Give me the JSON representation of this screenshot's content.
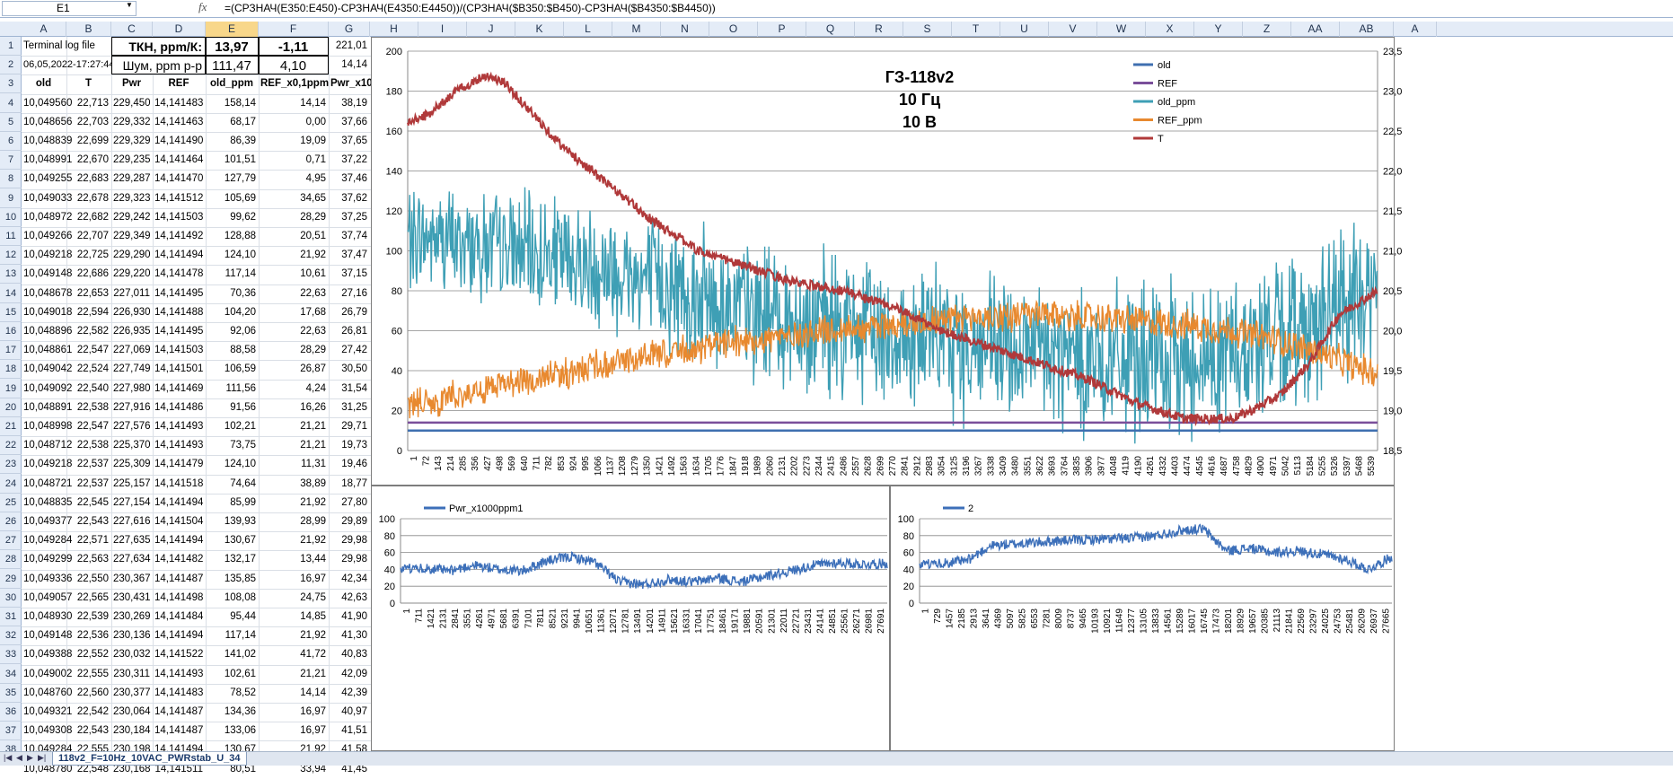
{
  "formula_bar": {
    "name_box": "E1",
    "fx": "fx",
    "formula": "=(СРЗНАЧ(E350:E450)-СРЗНАЧ(E4350:E4450))/(СРЗНАЧ($B350:$B450)-СРЗНАЧ($B4350:$B4450))"
  },
  "columns": [
    "A",
    "B",
    "C",
    "D",
    "E",
    "F",
    "G",
    "H",
    "I",
    "J",
    "K",
    "L",
    "M",
    "N",
    "O",
    "P",
    "Q",
    "R",
    "S",
    "T",
    "U",
    "V",
    "W",
    "X",
    "Y",
    "Z",
    "AA",
    "AB",
    "A"
  ],
  "selected_column": "E",
  "rows": [
    "1",
    "2",
    "3",
    "4",
    "5",
    "6",
    "7",
    "8",
    "9",
    "10",
    "11",
    "12",
    "13",
    "14",
    "15",
    "16",
    "17",
    "18",
    "19",
    "20",
    "21",
    "22",
    "23",
    "24",
    "25",
    "26",
    "27",
    "28",
    "29",
    "30",
    "31",
    "32",
    "33",
    "34",
    "35",
    "36",
    "37",
    "38"
  ],
  "row1": {
    "a": "Terminal log file",
    "c": "ТКН, ppm/К:",
    "e": "13,97",
    "f": "-1,11",
    "g": "221,01"
  },
  "row2": {
    "a": "06,05,2022-17:27:44",
    "c": "Шум, ppm p-p",
    "e": "111,47",
    "f": "4,10",
    "g": "14,14"
  },
  "headers": [
    "old",
    "T",
    "Pwr",
    "REF",
    "old_ppm",
    "REF_x0,1ppm",
    "Pwr_x10"
  ],
  "table": [
    [
      "10,049560",
      "22,713",
      "229,450",
      "14,141483",
      "158,14",
      "14,14",
      "38,19"
    ],
    [
      "10,048656",
      "22,703",
      "229,332",
      "14,141463",
      "68,17",
      "0,00",
      "37,66"
    ],
    [
      "10,048839",
      "22,699",
      "229,329",
      "14,141490",
      "86,39",
      "19,09",
      "37,65"
    ],
    [
      "10,048991",
      "22,670",
      "229,235",
      "14,141464",
      "101,51",
      "0,71",
      "37,22"
    ],
    [
      "10,049255",
      "22,683",
      "229,287",
      "14,141470",
      "127,79",
      "4,95",
      "37,46"
    ],
    [
      "10,049033",
      "22,678",
      "229,323",
      "14,141512",
      "105,69",
      "34,65",
      "37,62"
    ],
    [
      "10,048972",
      "22,682",
      "229,242",
      "14,141503",
      "99,62",
      "28,29",
      "37,25"
    ],
    [
      "10,049266",
      "22,707",
      "229,349",
      "14,141492",
      "128,88",
      "20,51",
      "37,74"
    ],
    [
      "10,049218",
      "22,725",
      "229,290",
      "14,141494",
      "124,10",
      "21,92",
      "37,47"
    ],
    [
      "10,049148",
      "22,686",
      "229,220",
      "14,141478",
      "117,14",
      "10,61",
      "37,15"
    ],
    [
      "10,048678",
      "22,653",
      "227,011",
      "14,141495",
      "70,36",
      "22,63",
      "27,16"
    ],
    [
      "10,049018",
      "22,594",
      "226,930",
      "14,141488",
      "104,20",
      "17,68",
      "26,79"
    ],
    [
      "10,048896",
      "22,582",
      "226,935",
      "14,141495",
      "92,06",
      "22,63",
      "26,81"
    ],
    [
      "10,048861",
      "22,547",
      "227,069",
      "14,141503",
      "88,58",
      "28,29",
      "27,42"
    ],
    [
      "10,049042",
      "22,524",
      "227,749",
      "14,141501",
      "106,59",
      "26,87",
      "30,50"
    ],
    [
      "10,049092",
      "22,540",
      "227,980",
      "14,141469",
      "111,56",
      "4,24",
      "31,54"
    ],
    [
      "10,048891",
      "22,538",
      "227,916",
      "14,141486",
      "91,56",
      "16,26",
      "31,25"
    ],
    [
      "10,048998",
      "22,547",
      "227,576",
      "14,141493",
      "102,21",
      "21,21",
      "29,71"
    ],
    [
      "10,048712",
      "22,538",
      "225,370",
      "14,141493",
      "73,75",
      "21,21",
      "19,73"
    ],
    [
      "10,049218",
      "22,537",
      "225,309",
      "14,141479",
      "124,10",
      "11,31",
      "19,46"
    ],
    [
      "10,048721",
      "22,537",
      "225,157",
      "14,141518",
      "74,64",
      "38,89",
      "18,77"
    ],
    [
      "10,048835",
      "22,545",
      "227,154",
      "14,141494",
      "85,99",
      "21,92",
      "27,80"
    ],
    [
      "10,049377",
      "22,543",
      "227,616",
      "14,141504",
      "139,93",
      "28,99",
      "29,89"
    ],
    [
      "10,049284",
      "22,571",
      "227,635",
      "14,141494",
      "130,67",
      "21,92",
      "29,98"
    ],
    [
      "10,049299",
      "22,563",
      "227,634",
      "14,141482",
      "132,17",
      "13,44",
      "29,98"
    ],
    [
      "10,049336",
      "22,550",
      "230,367",
      "14,141487",
      "135,85",
      "16,97",
      "42,34"
    ],
    [
      "10,049057",
      "22,565",
      "230,431",
      "14,141498",
      "108,08",
      "24,75",
      "42,63"
    ],
    [
      "10,048930",
      "22,539",
      "230,269",
      "14,141484",
      "95,44",
      "14,85",
      "41,90"
    ],
    [
      "10,049148",
      "22,536",
      "230,136",
      "14,141494",
      "117,14",
      "21,92",
      "41,30"
    ],
    [
      "10,049388",
      "22,552",
      "230,032",
      "14,141522",
      "141,02",
      "41,72",
      "40,83"
    ],
    [
      "10,049002",
      "22,555",
      "230,311",
      "14,141493",
      "102,61",
      "21,21",
      "42,09"
    ],
    [
      "10,048760",
      "22,560",
      "230,377",
      "14,141483",
      "78,52",
      "14,14",
      "42,39"
    ],
    [
      "10,049321",
      "22,542",
      "230,064",
      "14,141487",
      "134,36",
      "16,97",
      "40,97"
    ],
    [
      "10,049308",
      "22,543",
      "230,184",
      "14,141487",
      "133,06",
      "16,97",
      "41,51"
    ],
    [
      "10,049284",
      "22,555",
      "230,198",
      "14,141494",
      "130,67",
      "21,92",
      "41,58"
    ],
    [
      "10,048780",
      "22,548",
      "230,168",
      "14,141511",
      "80,51",
      "33,94",
      "41,45"
    ]
  ],
  "sheet_tab": "118v2_F=10Hz_10VAC_PWRstab_U_34",
  "colors": {
    "old": "#3f6fb0",
    "REF": "#7a4f9a",
    "old_ppm": "#3e9fb5",
    "REF_ppm": "#e8892f",
    "T": "#b0393a",
    "pwr": "#3c6fb9"
  },
  "chart_data": [
    {
      "type": "line",
      "annotation": [
        "ГЗ-118v2",
        "10 Гц",
        "10 В"
      ],
      "legend": [
        "old",
        "REF",
        "old_ppm",
        "REF_ppm",
        "T"
      ],
      "legend_position": "top-right",
      "ylim": [
        0,
        200
      ],
      "yticks": [
        "0",
        "20",
        "40",
        "60",
        "80",
        "100",
        "120",
        "140",
        "160",
        "180",
        "200"
      ],
      "y2lim": [
        18.5,
        23.5
      ],
      "y2ticks": [
        "18,5",
        "19,0",
        "19,5",
        "20,0",
        "20,5",
        "21,0",
        "21,5",
        "22,0",
        "22,5",
        "23,0",
        "23,5"
      ],
      "xticks": [
        "1",
        "72",
        "143",
        "214",
        "285",
        "356",
        "427",
        "498",
        "569",
        "640",
        "711",
        "782",
        "853",
        "924",
        "995",
        "1066",
        "1137",
        "1208",
        "1279",
        "1350",
        "1421",
        "1492",
        "1563",
        "1634",
        "1705",
        "1776",
        "1847",
        "1918",
        "1989",
        "2060",
        "2131",
        "2202",
        "2273",
        "2344",
        "2415",
        "2486",
        "2557",
        "2628",
        "2699",
        "2770",
        "2841",
        "2912",
        "2983",
        "3054",
        "3125",
        "3196",
        "3267",
        "3338",
        "3409",
        "3480",
        "3551",
        "3622",
        "3693",
        "3764",
        "3835",
        "3906",
        "3977",
        "4048",
        "4119",
        "4190",
        "4261",
        "4332",
        "4403",
        "4474",
        "4545",
        "4616",
        "4687",
        "4758",
        "4829",
        "4900",
        "4971",
        "5042",
        "5113",
        "5184",
        "5255",
        "5326",
        "5397",
        "5468",
        "5539"
      ],
      "series": [
        {
          "name": "old",
          "values": [
            10,
            10
          ]
        },
        {
          "name": "REF",
          "values": [
            14,
            14
          ]
        },
        {
          "name": "old_ppm",
          "x": [
            0,
            0.05,
            0.1,
            0.15,
            0.2,
            0.25,
            0.3,
            0.35,
            0.4,
            0.45,
            0.5,
            0.55,
            0.6,
            0.65,
            0.7,
            0.75,
            0.8,
            0.85,
            0.9,
            0.95,
            1.0
          ],
          "center": [
            107,
            105,
            100,
            97,
            92,
            85,
            78,
            70,
            65,
            61,
            58,
            54,
            50,
            47,
            45,
            43,
            45,
            50,
            58,
            68,
            80
          ],
          "spread": [
            30,
            32,
            34,
            36,
            38,
            40,
            40,
            42,
            42,
            44,
            44,
            44,
            45,
            45,
            45,
            46,
            46,
            46,
            46,
            46,
            45
          ]
        },
        {
          "name": "REF_ppm",
          "x": [
            0,
            0.05,
            0.1,
            0.15,
            0.2,
            0.25,
            0.3,
            0.35,
            0.4,
            0.45,
            0.5,
            0.55,
            0.6,
            0.65,
            0.7,
            0.75,
            0.8,
            0.85,
            0.9,
            0.95,
            1.0
          ],
          "center": [
            22,
            27,
            33,
            38,
            43,
            47,
            51,
            55,
            58,
            61,
            63,
            66,
            67,
            68,
            67,
            65,
            63,
            60,
            55,
            47,
            38
          ],
          "spread": [
            9,
            9,
            9,
            9,
            9,
            9,
            9,
            9,
            9,
            9,
            9,
            9,
            9,
            9,
            9,
            9,
            9,
            9,
            9,
            9,
            9
          ]
        },
        {
          "name": "T",
          "x": [
            0,
            0.02,
            0.05,
            0.08,
            0.1,
            0.13,
            0.16,
            0.2,
            0.25,
            0.3,
            0.35,
            0.4,
            0.45,
            0.5,
            0.55,
            0.6,
            0.65,
            0.7,
            0.75,
            0.8,
            0.85,
            0.87,
            0.9,
            0.93,
            0.96,
            1.0
          ],
          "values": [
            22.6,
            22.7,
            23.0,
            23.2,
            23.1,
            22.7,
            22.3,
            21.9,
            21.4,
            21.0,
            20.8,
            20.6,
            20.5,
            20.3,
            20.0,
            19.8,
            19.6,
            19.4,
            19.1,
            18.9,
            18.9,
            19.0,
            19.2,
            19.6,
            20.2,
            20.5
          ]
        }
      ]
    },
    {
      "type": "line",
      "legend": [
        "Pwr_x1000ppm1"
      ],
      "ylim": [
        0,
        100
      ],
      "yticks": [
        "0",
        "20",
        "40",
        "60",
        "80",
        "100"
      ],
      "xticks": [
        "1",
        "711",
        "1421",
        "2131",
        "2841",
        "3551",
        "4261",
        "4971",
        "5681",
        "6391",
        "7101",
        "7811",
        "8521",
        "9231",
        "9941",
        "10651",
        "11361",
        "12071",
        "12781",
        "13491",
        "14201",
        "14911",
        "15621",
        "16331",
        "17041",
        "17751",
        "18461",
        "19171",
        "19881",
        "20591",
        "21301",
        "22011",
        "22721",
        "23431",
        "24141",
        "24851",
        "25561",
        "26271",
        "26981",
        "27691"
      ],
      "series": [
        {
          "name": "Pwr_x1000ppm1",
          "x": [
            0,
            0.05,
            0.1,
            0.15,
            0.2,
            0.25,
            0.3,
            0.35,
            0.4,
            0.45,
            0.5,
            0.55,
            0.6,
            0.65,
            0.7,
            0.75,
            0.8,
            0.85,
            0.9,
            0.95,
            1.0
          ],
          "values": [
            40,
            42,
            38,
            45,
            40,
            38,
            50,
            55,
            48,
            25,
            22,
            28,
            25,
            30,
            25,
            32,
            38,
            45,
            48,
            46,
            47
          ]
        }
      ]
    },
    {
      "type": "line",
      "legend": [
        "2"
      ],
      "ylim": [
        0,
        100
      ],
      "yticks": [
        "0",
        "20",
        "40",
        "60",
        "80",
        "100"
      ],
      "xticks": [
        "1",
        "729",
        "1457",
        "2185",
        "2913",
        "3641",
        "4369",
        "5097",
        "5825",
        "6553",
        "7281",
        "8009",
        "8737",
        "9465",
        "10193",
        "10921",
        "11649",
        "12377",
        "13105",
        "13833",
        "14561",
        "15289",
        "16017",
        "16745",
        "17473",
        "18201",
        "18929",
        "19657",
        "20385",
        "21113",
        "21841",
        "22569",
        "23297",
        "24025",
        "24753",
        "25481",
        "26209",
        "26937",
        "27665"
      ],
      "series": [
        {
          "name": "2",
          "x": [
            0,
            0.05,
            0.1,
            0.15,
            0.2,
            0.25,
            0.3,
            0.35,
            0.4,
            0.45,
            0.5,
            0.55,
            0.6,
            0.65,
            0.7,
            0.75,
            0.8,
            0.85,
            0.9,
            0.95,
            1.0
          ],
          "values": [
            45,
            48,
            50,
            68,
            70,
            72,
            74,
            75,
            76,
            77,
            80,
            86,
            88,
            62,
            65,
            60,
            62,
            58,
            52,
            40,
            55
          ]
        }
      ]
    }
  ]
}
